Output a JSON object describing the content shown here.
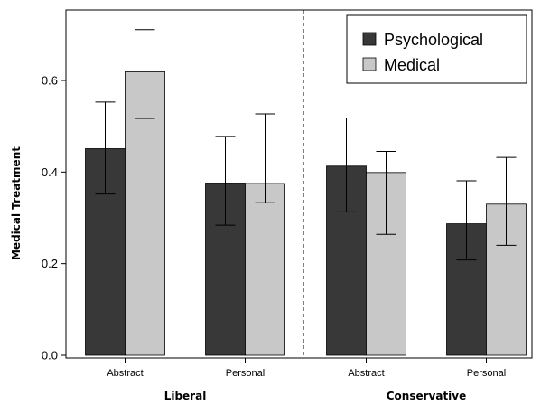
{
  "chart_data": {
    "type": "bar",
    "ylabel": "Medical Treatment",
    "ylim": [
      0,
      0.73
    ],
    "yticks": [
      "0.0",
      "0.2",
      "0.4",
      "0.6"
    ],
    "categories": [
      "Abstract",
      "Personal",
      "Abstract",
      "Personal"
    ],
    "groups": [
      {
        "label": "Liberal",
        "categories": [
          0,
          1
        ]
      },
      {
        "label": "Conservative",
        "categories": [
          2,
          3
        ]
      }
    ],
    "series": [
      {
        "name": "Psychological",
        "color": "#383838",
        "values": [
          0.451,
          0.376,
          0.413,
          0.287
        ],
        "err_low": [
          0.352,
          0.284,
          0.313,
          0.208
        ],
        "err_high": [
          0.553,
          0.478,
          0.518,
          0.381
        ]
      },
      {
        "name": "Medical",
        "color": "#c8c8c8",
        "values": [
          0.619,
          0.375,
          0.399,
          0.33
        ],
        "err_low": [
          0.517,
          0.333,
          0.264,
          0.24
        ],
        "err_high": [
          0.711,
          0.527,
          0.445,
          0.432
        ]
      }
    ],
    "legend": "top-right",
    "grid": false
  }
}
